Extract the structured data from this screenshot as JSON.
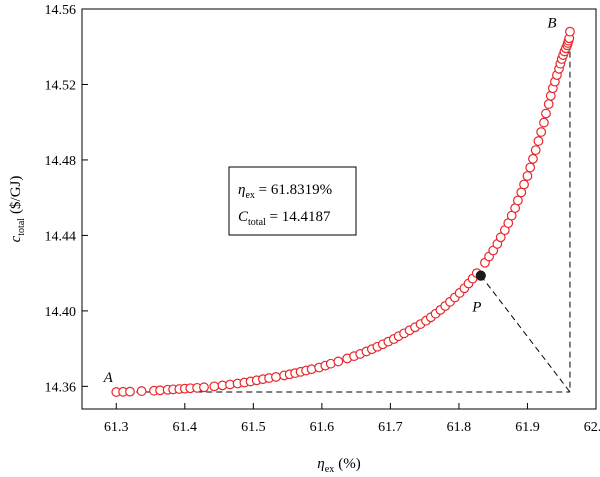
{
  "chart_data": {
    "type": "scatter",
    "title": "",
    "xlabel": {
      "symbol": "η",
      "subscript": "ex",
      "unit": "(%)"
    },
    "ylabel": {
      "symbol": "c",
      "subscript": "total",
      "unit": "($/GJ)"
    },
    "xlim": [
      61.25,
      62.0
    ],
    "ylim": [
      14.348,
      14.56
    ],
    "x_ticks": [
      "61.3",
      "61.4",
      "61.5",
      "61.6",
      "61.7",
      "61.8",
      "61.9",
      "62.0"
    ],
    "y_ticks": [
      "14.36",
      "14.40",
      "14.44",
      "14.48",
      "14.52",
      "14.56"
    ],
    "grid": false,
    "colors": {
      "marker": "#e8262b",
      "optimum": "#1a1a1a",
      "axis": "#000000"
    },
    "points_label_A": "A",
    "points_label_B": "B",
    "points_label_P": "P",
    "optimal_point": {
      "x": 61.8319,
      "y": 14.4187
    },
    "corner_point": {
      "x": 61.962,
      "y": 14.357
    },
    "annotation": {
      "line1_symbol": "η",
      "line1_sub": "ex",
      "line1_value": " = 61.8319%",
      "line2_symbol": "C",
      "line2_sub": "total",
      "line2_value": " = 14.4187"
    },
    "series": [
      {
        "x": [
          61.3,
          61.31,
          61.32,
          61.337,
          61.355,
          61.364,
          61.375,
          61.383,
          61.392,
          61.4,
          61.408,
          61.418,
          61.428,
          61.443,
          61.455,
          61.466,
          61.477,
          61.487,
          61.496,
          61.505,
          61.514,
          61.523,
          61.533,
          61.545,
          61.553,
          61.561,
          61.569,
          61.577,
          61.585,
          61.596,
          61.605,
          61.613,
          61.624,
          61.637,
          61.647,
          61.656,
          61.665,
          61.673,
          61.681,
          61.689,
          61.697,
          61.705,
          61.712,
          61.72,
          61.728,
          61.736,
          61.744,
          61.752,
          61.759,
          61.766,
          61.773,
          61.78,
          61.787,
          61.794,
          61.801,
          61.808,
          61.814,
          61.82,
          61.826,
          61.838,
          61.844,
          61.85,
          61.856,
          61.861,
          61.867,
          61.872,
          61.877,
          61.882,
          61.886,
          61.891,
          61.895,
          61.9,
          61.904,
          61.908,
          61.912,
          61.916,
          61.92,
          61.924,
          61.927,
          61.931,
          61.934,
          61.937,
          61.94,
          61.943,
          61.946,
          61.948,
          61.95,
          61.952,
          61.954,
          61.956,
          61.958,
          61.959,
          61.96,
          61.961,
          61.962
        ],
        "y": [
          14.357,
          14.3571,
          14.3572,
          14.3575,
          14.3577,
          14.3579,
          14.3582,
          14.3584,
          14.3586,
          14.3588,
          14.359,
          14.3592,
          14.3595,
          14.36,
          14.3605,
          14.361,
          14.3615,
          14.362,
          14.3626,
          14.3632,
          14.3638,
          14.3644,
          14.365,
          14.3658,
          14.3664,
          14.367,
          14.3677,
          14.3684,
          14.3691,
          14.37,
          14.371,
          14.372,
          14.3732,
          14.3748,
          14.376,
          14.3772,
          14.3785,
          14.3797,
          14.381,
          14.3823,
          14.3837,
          14.3851,
          14.3866,
          14.3881,
          14.3897,
          14.3913,
          14.393,
          14.3948,
          14.3966,
          14.3985,
          14.4005,
          14.4026,
          14.4048,
          14.4071,
          14.4095,
          14.412,
          14.4145,
          14.4171,
          14.42,
          14.4255,
          14.4288,
          14.432,
          14.4355,
          14.439,
          14.4428,
          14.4465,
          14.4505,
          14.4545,
          14.4585,
          14.4628,
          14.467,
          14.4715,
          14.476,
          14.4806,
          14.4852,
          14.49,
          14.4948,
          14.4998,
          14.5046,
          14.5096,
          14.514,
          14.518,
          14.5215,
          14.525,
          14.5283,
          14.531,
          14.5335,
          14.5356,
          14.5375,
          14.5392,
          14.5408,
          14.542,
          14.5432,
          14.5445,
          14.548
        ]
      }
    ]
  }
}
